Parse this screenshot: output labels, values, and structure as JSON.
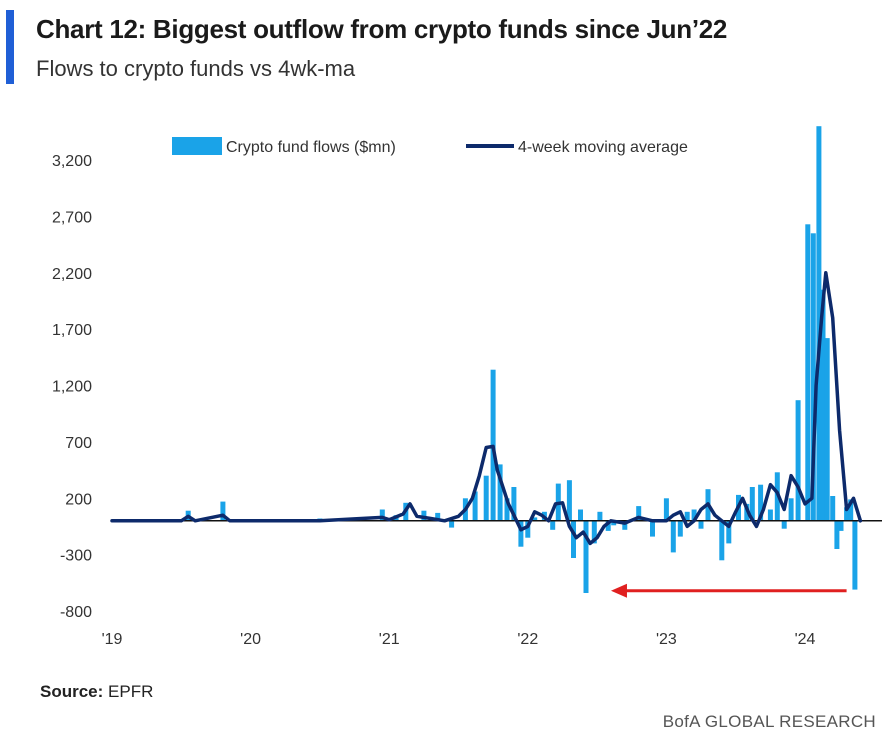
{
  "header": {
    "title": "Chart 12: Biggest outflow from crypto funds since Jun’22",
    "subtitle": "Flows to crypto funds vs 4wk-ma"
  },
  "footer": {
    "source_label": "Source:",
    "source_value": "EPFR",
    "brand": "BofA GLOBAL RESEARCH"
  },
  "colors": {
    "bars": "#1aa3e8",
    "line": "#0d2a6b",
    "arrow": "#e02020",
    "accent": "#1f5fd6"
  },
  "chart_data": {
    "type": "bar",
    "title": "Biggest outflow from crypto funds since Jun'22",
    "xlabel": "",
    "ylabel": "",
    "ylim": [
      -800,
      3500
    ],
    "yticks": [
      3200,
      2700,
      2200,
      1700,
      1200,
      700,
      200,
      -300,
      -800
    ],
    "ytick_labels": [
      "3,200",
      "2,700",
      "2,200",
      "1,700",
      "1,200",
      "700",
      "200",
      "-300",
      "-800"
    ],
    "xlim": [
      2019.0,
      2024.45
    ],
    "xticks": [
      2019,
      2020,
      2021,
      2022,
      2023,
      2024
    ],
    "xtick_labels": [
      "'19",
      "'20",
      "'21",
      "'22",
      "'23",
      "'24"
    ],
    "legend": [
      "Crypto fund flows ($mn)",
      "4-week moving average"
    ],
    "legend_position": "top",
    "annotation": "arrow from latest outflow (Apr '24) back to Jun '22 outflow",
    "series": [
      {
        "name": "Crypto fund flows ($mn)",
        "kind": "bar",
        "x": [
          2019.55,
          2019.8,
          2020.5,
          2020.95,
          2021.05,
          2021.12,
          2021.25,
          2021.35,
          2021.45,
          2021.55,
          2021.62,
          2021.7,
          2021.75,
          2021.8,
          2021.85,
          2021.9,
          2021.95,
          2022.0,
          2022.05,
          2022.12,
          2022.18,
          2022.22,
          2022.3,
          2022.33,
          2022.38,
          2022.42,
          2022.48,
          2022.52,
          2022.58,
          2022.62,
          2022.7,
          2022.8,
          2022.9,
          2023.0,
          2023.05,
          2023.1,
          2023.15,
          2023.2,
          2023.25,
          2023.3,
          2023.4,
          2023.45,
          2023.52,
          2023.58,
          2023.62,
          2023.68,
          2023.75,
          2023.8,
          2023.85,
          2023.9,
          2023.95,
          2024.02,
          2024.06,
          2024.1,
          2024.13,
          2024.16,
          2024.2,
          2024.23,
          2024.26,
          2024.3,
          2024.33,
          2024.36
        ],
        "values": [
          90,
          170,
          20,
          100,
          50,
          160,
          90,
          70,
          -60,
          200,
          260,
          400,
          1340,
          500,
          200,
          300,
          -230,
          -150,
          30,
          80,
          -80,
          330,
          360,
          -330,
          100,
          -640,
          -200,
          80,
          -90,
          -40,
          -80,
          130,
          -140,
          200,
          -280,
          -140,
          80,
          100,
          -70,
          280,
          -350,
          -200,
          230,
          150,
          300,
          320,
          100,
          430,
          -70,
          200,
          1070,
          2630,
          2550,
          3500,
          2050,
          1620,
          220,
          -250,
          -90,
          120,
          190,
          -610
        ]
      },
      {
        "name": "4-week moving average",
        "kind": "line",
        "x": [
          2019.0,
          2019.5,
          2019.55,
          2019.6,
          2019.8,
          2019.85,
          2019.9,
          2020.0,
          2020.5,
          2020.95,
          2021.0,
          2021.1,
          2021.15,
          2021.2,
          2021.3,
          2021.4,
          2021.5,
          2021.55,
          2021.6,
          2021.65,
          2021.7,
          2021.75,
          2021.78,
          2021.82,
          2021.86,
          2021.9,
          2021.95,
          2022.0,
          2022.05,
          2022.1,
          2022.15,
          2022.2,
          2022.25,
          2022.3,
          2022.35,
          2022.4,
          2022.45,
          2022.5,
          2022.55,
          2022.6,
          2022.7,
          2022.8,
          2022.9,
          2023.0,
          2023.05,
          2023.1,
          2023.15,
          2023.2,
          2023.25,
          2023.3,
          2023.35,
          2023.4,
          2023.45,
          2023.5,
          2023.55,
          2023.6,
          2023.65,
          2023.7,
          2023.75,
          2023.8,
          2023.85,
          2023.9,
          2023.95,
          2024.0,
          2024.05,
          2024.08,
          2024.12,
          2024.15,
          2024.2,
          2024.25,
          2024.3,
          2024.35,
          2024.4
        ],
        "values": [
          0,
          0,
          40,
          0,
          50,
          0,
          0,
          0,
          0,
          30,
          10,
          60,
          150,
          40,
          20,
          0,
          40,
          100,
          200,
          400,
          650,
          660,
          450,
          300,
          150,
          50,
          -80,
          -50,
          80,
          50,
          0,
          150,
          160,
          -50,
          -150,
          -100,
          -200,
          -150,
          -50,
          0,
          -20,
          30,
          0,
          0,
          50,
          80,
          -50,
          0,
          100,
          150,
          50,
          0,
          -50,
          80,
          200,
          50,
          -50,
          100,
          320,
          250,
          100,
          400,
          300,
          150,
          200,
          1200,
          1800,
          2200,
          1800,
          800,
          100,
          200,
          0
        ]
      }
    ]
  }
}
